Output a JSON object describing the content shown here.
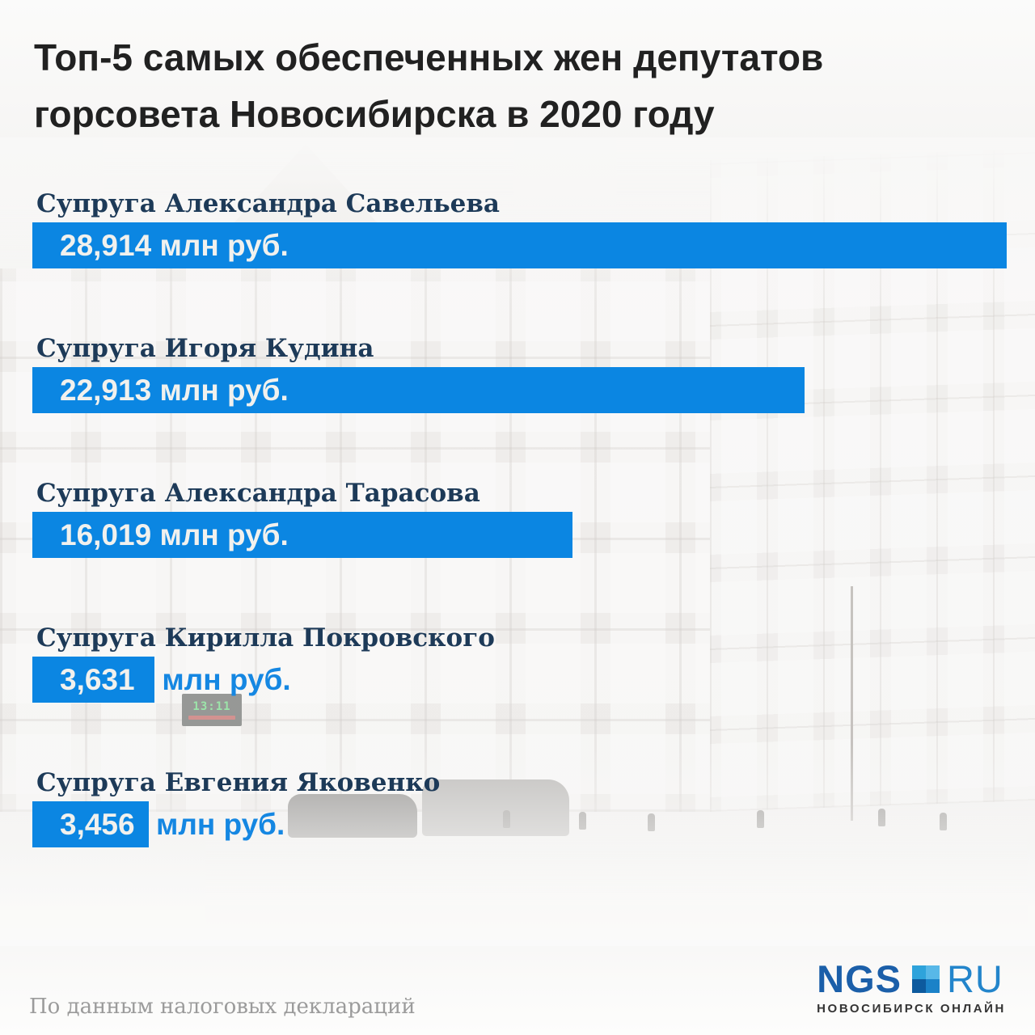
{
  "page": {
    "title_line1": "Топ-5 самых обеспеченных жен депутатов",
    "title_line2": "горсовета Новосибирска в 2020 году",
    "source_note": "По данным налоговых деклараций"
  },
  "chart_data": {
    "type": "bar",
    "orientation": "horizontal",
    "title": "Топ-5 самых обеспеченных жен депутатов горсовета Новосибирска в 2020 году",
    "categories": [
      "Супруга Александра Савельева",
      "Супруга Игоря Кудина",
      "Супруга Александра Тарасова",
      "Супруга Кирилла Покровского",
      "Супруга Евгения Яковенко"
    ],
    "values": [
      28.914,
      22.913,
      16.019,
      3.631,
      3.456
    ],
    "value_labels": [
      "28,914 млн руб.",
      "22,913 млн руб.",
      "16,019 млн руб.",
      "3,631 млн руб.",
      "3,456 млн руб."
    ],
    "unit": "млн руб.",
    "xlim": [
      0,
      28.914
    ],
    "grid": false,
    "legend": false,
    "bar_color": "#0b86e2",
    "source": "По данным налоговых деклараций"
  },
  "rows": [
    {
      "label": "Супруга Александра Савельева",
      "value": "28,914",
      "value_inside": "28,914 млн руб.",
      "unit_outside": ""
    },
    {
      "label": "Супруга Игоря Кудина",
      "value": "22,913",
      "value_inside": "22,913 млн руб.",
      "unit_outside": ""
    },
    {
      "label": "Супруга Александра Тарасова",
      "value": "16,019",
      "value_inside": "16,019 млн руб.",
      "unit_outside": ""
    },
    {
      "label": "Супруга Кирилла Покровского",
      "value": "3,631",
      "value_inside": "3,631",
      "unit_outside": "млн руб."
    },
    {
      "label": "Супруга Евгения Яковенко",
      "value": "3,456",
      "value_inside": "3,456",
      "unit_outside": "млн руб."
    }
  ],
  "background_photo": {
    "description": "faded photo of Novosibirsk city hall building",
    "led_clock_time": "13:11"
  },
  "logo": {
    "ngs": "NGS",
    "ru": "RU",
    "subtitle": "НОВОСИБИРСК ОНЛАЙН",
    "colors": {
      "ngs": "#1b5fa9",
      "ru": "#2385cb",
      "square_tl": "#2ea3db",
      "square_tr": "#58b8e8",
      "square_bl": "#0d5a9e",
      "square_br": "#1b82c8"
    }
  },
  "colors": {
    "bar": "#0b86e2",
    "label": "#1d3a58",
    "title": "#212121",
    "value_text": "#f1f1ee",
    "unit_outside_text": "#1587e2",
    "source_text": "#9b9b9b",
    "background": "#f5f4f3"
  }
}
